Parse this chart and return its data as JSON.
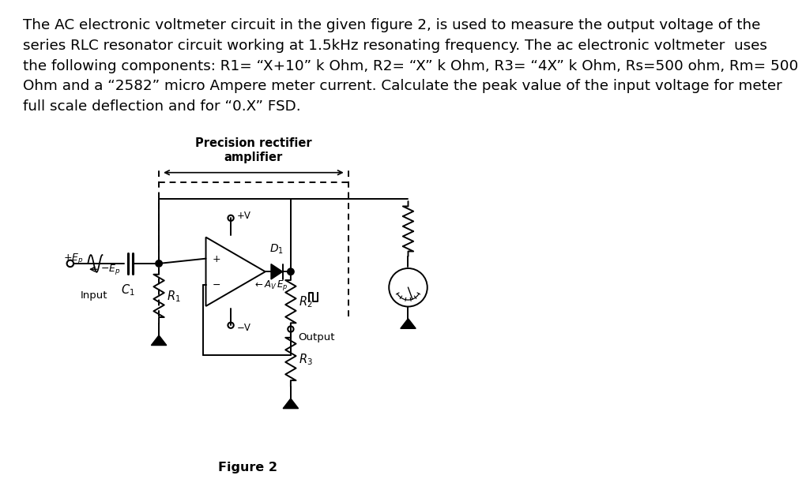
{
  "title_text": "The AC electronic voltmeter circuit in the given figure 2, is used to measure the output voltage of the\nseries RLC resonator circuit working at 1.5kHz resonating frequency. The ac electronic voltmeter  uses\nthe following components: R1= “X+10” k Ohm, R2= “X” k Ohm, R3= “4X” k Ohm, Rs=500 ohm, Rm= 500\nOhm and a “2582” micro Ampere meter current. Calculate the peak value of the input voltage for meter\nfull scale deflection and for “0.X” FSD.",
  "figure_label": "Figure 2",
  "precision_line1": "Precision rectifier",
  "precision_line2": "amplifier",
  "bg_color": "#ffffff",
  "text_color": "#000000",
  "title_fontsize": 13.2,
  "figure_label_fontsize": 11.5,
  "lw": 1.4
}
